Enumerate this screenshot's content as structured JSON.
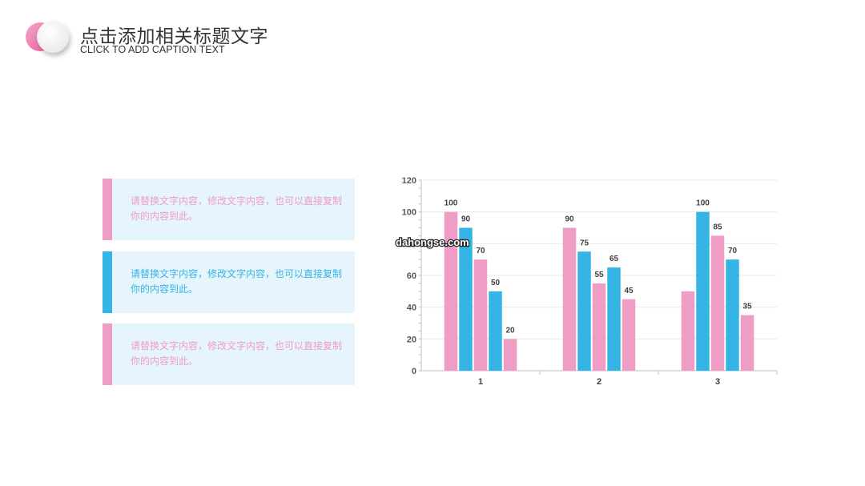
{
  "header": {
    "title": "点击添加相关标题文字",
    "subtitle": "CLICK TO ADD CAPTION TEXT"
  },
  "cards": [
    {
      "text": "请替换文字内容，修改文字内容，也可以直接复制你的内容到此。",
      "color": "#ef9dc5"
    },
    {
      "text": "请替换文字内容，修改文字内容，也可以直接复制你的内容到此。",
      "color": "#35b5e5"
    },
    {
      "text": "请替换文字内容，修改文字内容，也可以直接复制你的内容到此。",
      "color": "#ef9dc5"
    }
  ],
  "watermark": "dahongse.com",
  "chart_data": {
    "type": "bar",
    "categories": [
      "1",
      "2",
      "3"
    ],
    "ylim": [
      0,
      120
    ],
    "yticks": [
      0,
      20,
      40,
      60,
      80,
      100,
      120
    ],
    "grid": true,
    "bars": [
      [
        {
          "value": 100,
          "color": "#ef9dc5",
          "label": "100"
        },
        {
          "value": 90,
          "color": "#35b5e5",
          "label": "90"
        },
        {
          "value": 70,
          "color": "#ef9dc5",
          "label": "70"
        },
        {
          "value": 50,
          "color": "#35b5e5",
          "label": "50"
        },
        {
          "value": 20,
          "color": "#ef9dc5",
          "label": "20"
        }
      ],
      [
        {
          "value": 90,
          "color": "#ef9dc5",
          "label": "90"
        },
        {
          "value": 75,
          "color": "#35b5e5",
          "label": "75"
        },
        {
          "value": 55,
          "color": "#ef9dc5",
          "label": "55"
        },
        {
          "value": 65,
          "color": "#35b5e5",
          "label": "65"
        },
        {
          "value": 45,
          "color": "#ef9dc5",
          "label": "45"
        }
      ],
      [
        {
          "value": 50,
          "color": "#ef9dc5",
          "label": ""
        },
        {
          "value": 100,
          "color": "#35b5e5",
          "label": "100"
        },
        {
          "value": 85,
          "color": "#ef9dc5",
          "label": "85"
        },
        {
          "value": 70,
          "color": "#35b5e5",
          "label": "70"
        },
        {
          "value": 35,
          "color": "#ef9dc5",
          "label": "35"
        }
      ]
    ]
  }
}
